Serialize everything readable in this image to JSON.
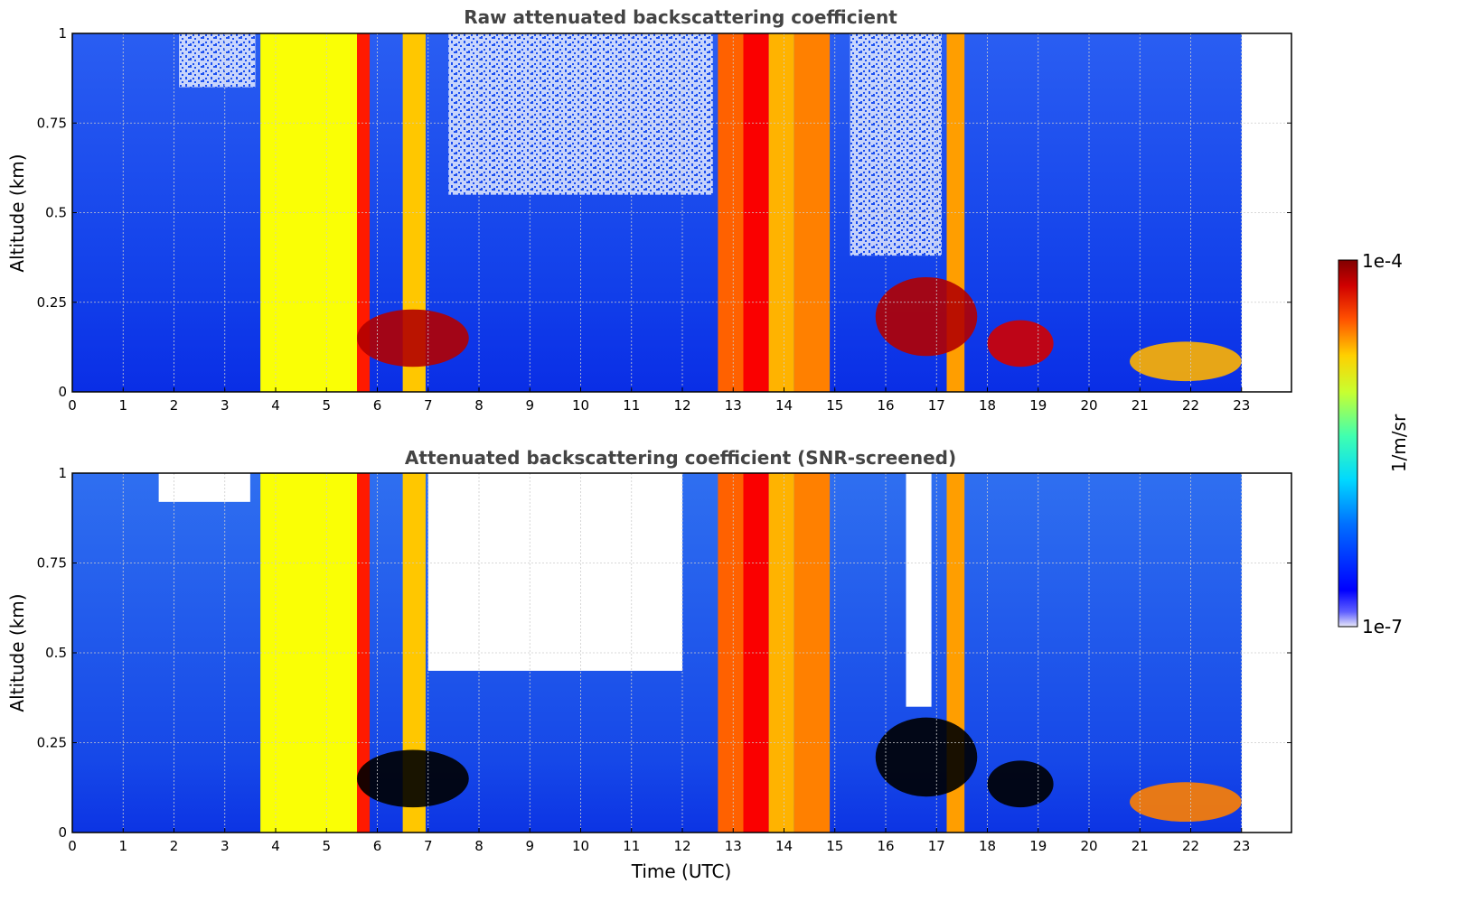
{
  "chart_data": [
    {
      "type": "heatmap",
      "title": "Raw attenuated backscattering coefficient",
      "xlabel": "",
      "ylabel": "Altitude (km)",
      "xlim": [
        0,
        24
      ],
      "ylim": [
        0,
        1
      ],
      "x_ticks": [
        "0",
        "1",
        "2",
        "3",
        "4",
        "5",
        "6",
        "7",
        "8",
        "9",
        "10",
        "11",
        "12",
        "13",
        "14",
        "15",
        "16",
        "17",
        "18",
        "19",
        "20",
        "21",
        "22",
        "23"
      ],
      "y_ticks": [
        "0",
        "0.25",
        "0.5",
        "0.75",
        "1"
      ],
      "data_extent_x": [
        0,
        23
      ],
      "grid": true,
      "features": [
        {
          "kind": "column",
          "x": [
            3.7,
            5.6
          ],
          "level": 0.62
        },
        {
          "kind": "column",
          "x": [
            5.6,
            5.85
          ],
          "level": 0.85
        },
        {
          "kind": "column",
          "x": [
            6.5,
            6.95
          ],
          "level": 0.68
        },
        {
          "kind": "column",
          "x": [
            12.7,
            13.2
          ],
          "level": 0.78
        },
        {
          "kind": "column",
          "x": [
            13.2,
            13.7
          ],
          "level": 0.88
        },
        {
          "kind": "column",
          "x": [
            13.7,
            14.2
          ],
          "level": 0.7
        },
        {
          "kind": "column",
          "x": [
            14.2,
            14.9
          ],
          "level": 0.75
        },
        {
          "kind": "column",
          "x": [
            17.2,
            17.55
          ],
          "level": 0.72
        },
        {
          "kind": "blob",
          "x": [
            5.6,
            7.8
          ],
          "y": [
            0.07,
            0.23
          ],
          "level": 0.95
        },
        {
          "kind": "blob",
          "x": [
            15.8,
            17.8
          ],
          "y": [
            0.1,
            0.32
          ],
          "level": 0.95
        },
        {
          "kind": "blob",
          "x": [
            18.0,
            19.3
          ],
          "y": [
            0.07,
            0.2
          ],
          "level": 0.92
        },
        {
          "kind": "blob",
          "x": [
            20.8,
            23.0
          ],
          "y": [
            0.03,
            0.14
          ],
          "level": 0.7
        },
        {
          "kind": "noise_top",
          "x": [
            2.1,
            3.6
          ],
          "y": [
            0.85,
            1.0
          ]
        },
        {
          "kind": "noise_top",
          "x": [
            7.4,
            12.6
          ],
          "y": [
            0.55,
            1.0
          ]
        },
        {
          "kind": "noise_top",
          "x": [
            15.3,
            17.1
          ],
          "y": [
            0.38,
            1.0
          ]
        }
      ]
    },
    {
      "type": "heatmap",
      "title": "Attenuated backscattering coefficient (SNR-screened)",
      "xlabel": "Time (UTC)",
      "ylabel": "Altitude (km)",
      "xlim": [
        0,
        24
      ],
      "ylim": [
        0,
        1
      ],
      "x_ticks": [
        "0",
        "1",
        "2",
        "3",
        "4",
        "5",
        "6",
        "7",
        "8",
        "9",
        "10",
        "11",
        "12",
        "13",
        "14",
        "15",
        "16",
        "17",
        "18",
        "19",
        "20",
        "21",
        "22",
        "23"
      ],
      "y_ticks": [
        "0",
        "0.25",
        "0.5",
        "0.75",
        "1"
      ],
      "data_extent_x": [
        0,
        23
      ],
      "grid": true,
      "features": [
        {
          "kind": "column",
          "x": [
            3.7,
            5.6
          ],
          "level": 0.62
        },
        {
          "kind": "column",
          "x": [
            5.6,
            5.85
          ],
          "level": 0.85
        },
        {
          "kind": "column",
          "x": [
            6.5,
            6.95
          ],
          "level": 0.68
        },
        {
          "kind": "column",
          "x": [
            12.7,
            13.2
          ],
          "level": 0.78
        },
        {
          "kind": "column",
          "x": [
            13.2,
            13.7
          ],
          "level": 0.88
        },
        {
          "kind": "column",
          "x": [
            13.7,
            14.2
          ],
          "level": 0.7
        },
        {
          "kind": "column",
          "x": [
            14.2,
            14.9
          ],
          "level": 0.75
        },
        {
          "kind": "column",
          "x": [
            17.2,
            17.55
          ],
          "level": 0.72
        },
        {
          "kind": "blob",
          "x": [
            5.6,
            7.8
          ],
          "y": [
            0.07,
            0.23
          ],
          "level": 1.0
        },
        {
          "kind": "blob",
          "x": [
            15.8,
            17.8
          ],
          "y": [
            0.1,
            0.32
          ],
          "level": 1.0
        },
        {
          "kind": "blob",
          "x": [
            18.0,
            19.3
          ],
          "y": [
            0.07,
            0.2
          ],
          "level": 1.0
        },
        {
          "kind": "blob",
          "x": [
            20.8,
            23.0
          ],
          "y": [
            0.03,
            0.14
          ],
          "level": 0.75
        },
        {
          "kind": "screened_out",
          "x": [
            7.0,
            12.0
          ],
          "y": [
            0.45,
            1.0
          ]
        },
        {
          "kind": "screened_out",
          "x": [
            16.4,
            16.9
          ],
          "y": [
            0.35,
            1.0
          ]
        },
        {
          "kind": "screened_out",
          "x": [
            1.7,
            3.5
          ],
          "y": [
            0.92,
            1.0
          ]
        }
      ]
    }
  ],
  "colorbar": {
    "max_label": "1e-4",
    "min_label": "1e-7",
    "unit_label": "1/m/sr",
    "colormap": "jet",
    "scale": "log"
  },
  "colors": {
    "background_field": "#1f5cf0",
    "noise": "#ffffff",
    "screened_fill": "#ffffff",
    "saturated": "#000000",
    "title": "#444444",
    "grid": "#cccccc"
  }
}
